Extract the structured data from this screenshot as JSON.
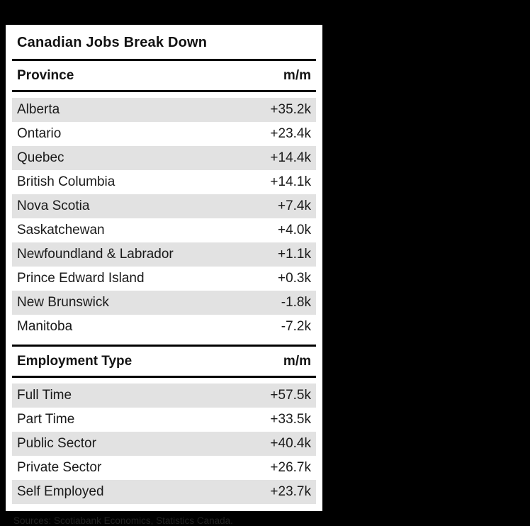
{
  "colors": {
    "page_background": "#000000",
    "card_background": "#ffffff",
    "row_stripe": "#e2e2e2",
    "rule": "#000000",
    "text": "#141414"
  },
  "chart_data": {
    "type": "table",
    "title": "Canadian Jobs Break Down",
    "sections": [
      {
        "header": {
          "label": "Province",
          "value": "m/m"
        },
        "rows": [
          {
            "label": "Alberta",
            "value": "+35.2k"
          },
          {
            "label": "Ontario",
            "value": "+23.4k"
          },
          {
            "label": "Quebec",
            "value": "+14.4k"
          },
          {
            "label": "British Columbia",
            "value": "+14.1k"
          },
          {
            "label": "Nova Scotia",
            "value": "+7.4k"
          },
          {
            "label": "Saskatchewan",
            "value": "+4.0k"
          },
          {
            "label": "Newfoundland & Labrador",
            "value": "+1.1k"
          },
          {
            "label": "Prince Edward Island",
            "value": "+0.3k"
          },
          {
            "label": "New Brunswick",
            "value": "-1.8k"
          },
          {
            "label": "Manitoba",
            "value": "-7.2k"
          }
        ]
      },
      {
        "header": {
          "label": "Employment Type",
          "value": "m/m"
        },
        "rows": [
          {
            "label": "Full Time",
            "value": "+57.5k"
          },
          {
            "label": "Part Time",
            "value": "+33.5k"
          },
          {
            "label": "Public Sector",
            "value": "+40.4k"
          },
          {
            "label": "Private Sector",
            "value": "+26.7k"
          },
          {
            "label": "Self Employed",
            "value": "+23.7k"
          }
        ]
      }
    ],
    "source": "Sources: Scotiabank Economics, Statistics Canada."
  }
}
